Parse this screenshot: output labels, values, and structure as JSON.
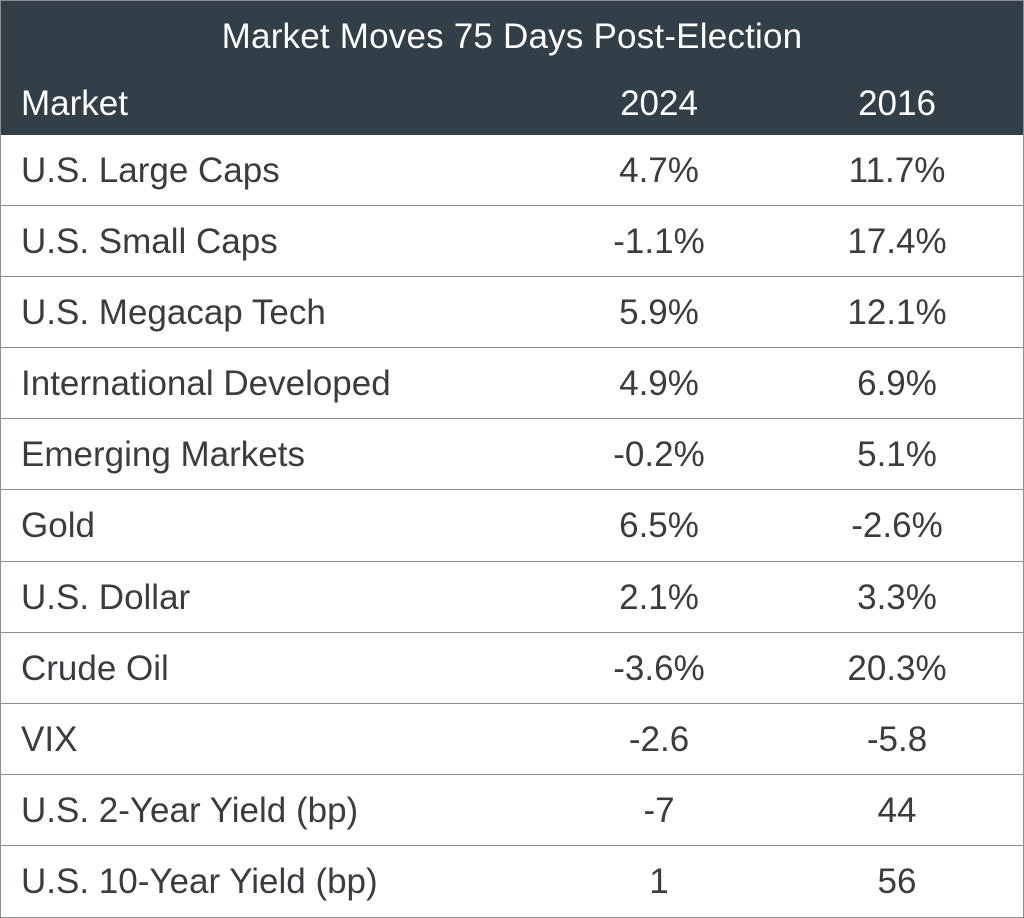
{
  "chart_data": {
    "type": "table",
    "title": "Market Moves 75 Days Post-Election",
    "columns": [
      "Market",
      "2024",
      "2016"
    ],
    "rows": [
      {
        "market": "U.S. Large Caps",
        "y2024": "4.7%",
        "y2016": "11.7%"
      },
      {
        "market": "U.S. Small Caps",
        "y2024": "-1.1%",
        "y2016": "17.4%"
      },
      {
        "market": "U.S. Megacap Tech",
        "y2024": "5.9%",
        "y2016": "12.1%"
      },
      {
        "market": "International Developed",
        "y2024": "4.9%",
        "y2016": "6.9%"
      },
      {
        "market": "Emerging Markets",
        "y2024": "-0.2%",
        "y2016": "5.1%"
      },
      {
        "market": "Gold",
        "y2024": "6.5%",
        "y2016": "-2.6%"
      },
      {
        "market": "U.S. Dollar",
        "y2024": "2.1%",
        "y2016": "3.3%"
      },
      {
        "market": "Crude Oil",
        "y2024": "-3.6%",
        "y2016": "20.3%"
      },
      {
        "market": "VIX",
        "y2024": "-2.6",
        "y2016": "-5.8"
      },
      {
        "market": "U.S. 2-Year Yield (bp)",
        "y2024": "-7",
        "y2016": "44"
      },
      {
        "market": "U.S. 10-Year Yield (bp)",
        "y2024": "1",
        "y2016": "56"
      }
    ]
  },
  "colors": {
    "header_bg": "#333f48",
    "header_text": "#ffffff",
    "body_text": "#3a3d40",
    "divider": "#8a8f94"
  }
}
